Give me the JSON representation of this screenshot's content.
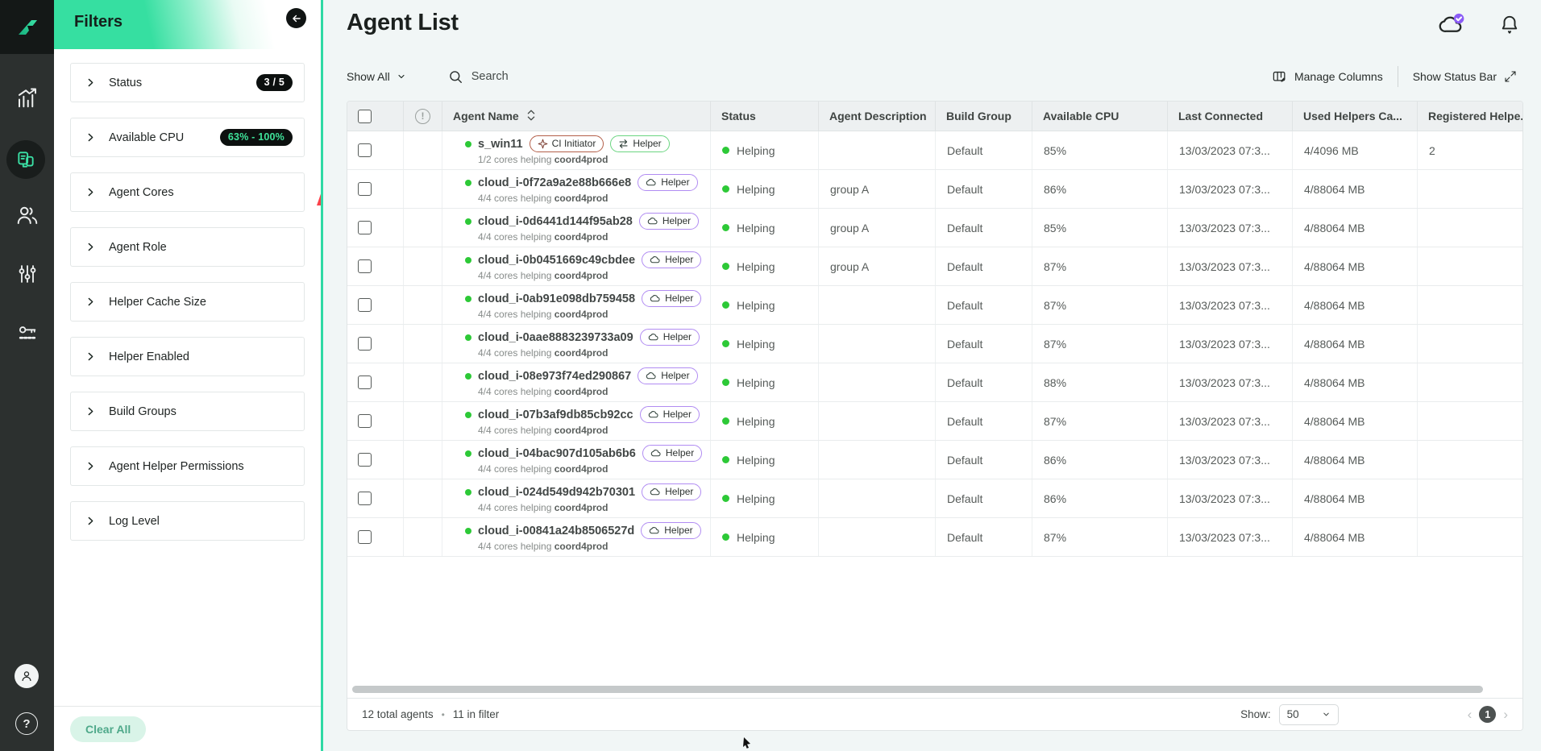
{
  "colors": {
    "accent_teal": "#2fd9a4",
    "status_green": "#2dc937",
    "red_arrow": "#f9434b",
    "notification_badge_purple": "#8b5cf6",
    "badge_pill_black": "#0c100f",
    "helper_purple_border": "#b18cf2",
    "helper_green_border": "#6bd581",
    "ci_border": "#b35f49"
  },
  "icons": [
    "logo-icon",
    "analytics-icon",
    "agents-icon",
    "users-icon",
    "sliders-icon",
    "key-icon",
    "avatar-icon",
    "help-icon",
    "back-arrow-icon",
    "cloud-sync-icon",
    "bell-icon",
    "search-icon",
    "manage-columns-icon",
    "expand-icon",
    "chevron-right-icon",
    "chevron-down-icon",
    "sort-icon",
    "alert-circle-icon",
    "spark-icon",
    "swap-arrows-icon",
    "cloud-badge-icon",
    "red-arrow-annotation",
    "cursor-pointer"
  ],
  "filters": {
    "title": "Filters",
    "clear_all": "Clear All",
    "items": [
      {
        "label": "Status",
        "badge": "3 / 5",
        "badge_color": "#ffffff"
      },
      {
        "label": "Available CPU",
        "badge": "63% - 100%",
        "badge_color": "#3fe39a"
      },
      {
        "label": "Agent Cores"
      },
      {
        "label": "Agent Role"
      },
      {
        "label": "Helper Cache Size"
      },
      {
        "label": "Helper Enabled"
      },
      {
        "label": "Build Groups"
      },
      {
        "label": "Agent Helper Permissions"
      },
      {
        "label": "Log Level"
      }
    ]
  },
  "header": {
    "title": "Agent List"
  },
  "toolbar": {
    "show_all": "Show All",
    "search_placeholder": "Search",
    "manage_columns": "Manage Columns",
    "show_status_bar": "Show Status Bar"
  },
  "table": {
    "columns": [
      "Agent Name",
      "Status",
      "Agent Description",
      "Build Group",
      "Available CPU",
      "Last Connected",
      "Used Helpers Ca...",
      "Registered Helpe.."
    ],
    "rows": [
      {
        "name": "s_win11",
        "badges": [
          {
            "label": "CI Initiator",
            "type": "ci"
          },
          {
            "label": "Helper",
            "type": "helper-swap"
          }
        ],
        "sub": "1/2 cores helping",
        "sub_bold": "coord4prod",
        "status": "Helping",
        "description": "",
        "build_group": "Default",
        "cpu": "85%",
        "last_connected": "13/03/2023 07:3...",
        "used_helpers": "4/4096 MB",
        "registered": "2"
      },
      {
        "name": "cloud_i-0f72a9a2e88b666e8",
        "badges": [
          {
            "label": "Helper",
            "type": "helper-cloud"
          }
        ],
        "sub": "4/4 cores helping",
        "sub_bold": "coord4prod",
        "status": "Helping",
        "description": "group A",
        "build_group": "Default",
        "cpu": "86%",
        "last_connected": "13/03/2023 07:3...",
        "used_helpers": "4/88064 MB",
        "registered": ""
      },
      {
        "name": "cloud_i-0d6441d144f95ab28",
        "badges": [
          {
            "label": "Helper",
            "type": "helper-cloud"
          }
        ],
        "sub": "4/4 cores helping",
        "sub_bold": "coord4prod",
        "status": "Helping",
        "description": "group A",
        "build_group": "Default",
        "cpu": "85%",
        "last_connected": "13/03/2023 07:3...",
        "used_helpers": "4/88064 MB",
        "registered": ""
      },
      {
        "name": "cloud_i-0b0451669c49cbdee",
        "badges": [
          {
            "label": "Helper",
            "type": "helper-cloud"
          }
        ],
        "sub": "4/4 cores helping",
        "sub_bold": "coord4prod",
        "status": "Helping",
        "description": "group A",
        "build_group": "Default",
        "cpu": "87%",
        "last_connected": "13/03/2023 07:3...",
        "used_helpers": "4/88064 MB",
        "registered": ""
      },
      {
        "name": "cloud_i-0ab91e098db759458",
        "badges": [
          {
            "label": "Helper",
            "type": "helper-cloud"
          }
        ],
        "sub": "4/4 cores helping",
        "sub_bold": "coord4prod",
        "status": "Helping",
        "description": "",
        "build_group": "Default",
        "cpu": "87%",
        "last_connected": "13/03/2023 07:3...",
        "used_helpers": "4/88064 MB",
        "registered": ""
      },
      {
        "name": "cloud_i-0aae8883239733a09",
        "badges": [
          {
            "label": "Helper",
            "type": "helper-cloud"
          }
        ],
        "sub": "4/4 cores helping",
        "sub_bold": "coord4prod",
        "status": "Helping",
        "description": "",
        "build_group": "Default",
        "cpu": "87%",
        "last_connected": "13/03/2023 07:3...",
        "used_helpers": "4/88064 MB",
        "registered": ""
      },
      {
        "name": "cloud_i-08e973f74ed290867",
        "badges": [
          {
            "label": "Helper",
            "type": "helper-cloud"
          }
        ],
        "sub": "4/4 cores helping",
        "sub_bold": "coord4prod",
        "status": "Helping",
        "description": "",
        "build_group": "Default",
        "cpu": "88%",
        "last_connected": "13/03/2023 07:3...",
        "used_helpers": "4/88064 MB",
        "registered": ""
      },
      {
        "name": "cloud_i-07b3af9db85cb92cc",
        "badges": [
          {
            "label": "Helper",
            "type": "helper-cloud"
          }
        ],
        "sub": "4/4 cores helping",
        "sub_bold": "coord4prod",
        "status": "Helping",
        "description": "",
        "build_group": "Default",
        "cpu": "87%",
        "last_connected": "13/03/2023 07:3...",
        "used_helpers": "4/88064 MB",
        "registered": ""
      },
      {
        "name": "cloud_i-04bac907d105ab6b6",
        "badges": [
          {
            "label": "Helper",
            "type": "helper-cloud"
          }
        ],
        "sub": "4/4 cores helping",
        "sub_bold": "coord4prod",
        "status": "Helping",
        "description": "",
        "build_group": "Default",
        "cpu": "86%",
        "last_connected": "13/03/2023 07:3...",
        "used_helpers": "4/88064 MB",
        "registered": ""
      },
      {
        "name": "cloud_i-024d549d942b70301",
        "badges": [
          {
            "label": "Helper",
            "type": "helper-cloud"
          }
        ],
        "sub": "4/4 cores helping",
        "sub_bold": "coord4prod",
        "status": "Helping",
        "description": "",
        "build_group": "Default",
        "cpu": "86%",
        "last_connected": "13/03/2023 07:3...",
        "used_helpers": "4/88064 MB",
        "registered": ""
      },
      {
        "name": "cloud_i-00841a24b8506527d",
        "badges": [
          {
            "label": "Helper",
            "type": "helper-cloud"
          }
        ],
        "sub": "4/4 cores helping",
        "sub_bold": "coord4prod",
        "status": "Helping",
        "description": "",
        "build_group": "Default",
        "cpu": "87%",
        "last_connected": "13/03/2023 07:3...",
        "used_helpers": "4/88064 MB",
        "registered": ""
      }
    ]
  },
  "footer": {
    "total": "12 total agents",
    "separator": "•",
    "in_filter": "11 in filter",
    "show_label": "Show:",
    "page_size": "50",
    "current_page": "1"
  }
}
